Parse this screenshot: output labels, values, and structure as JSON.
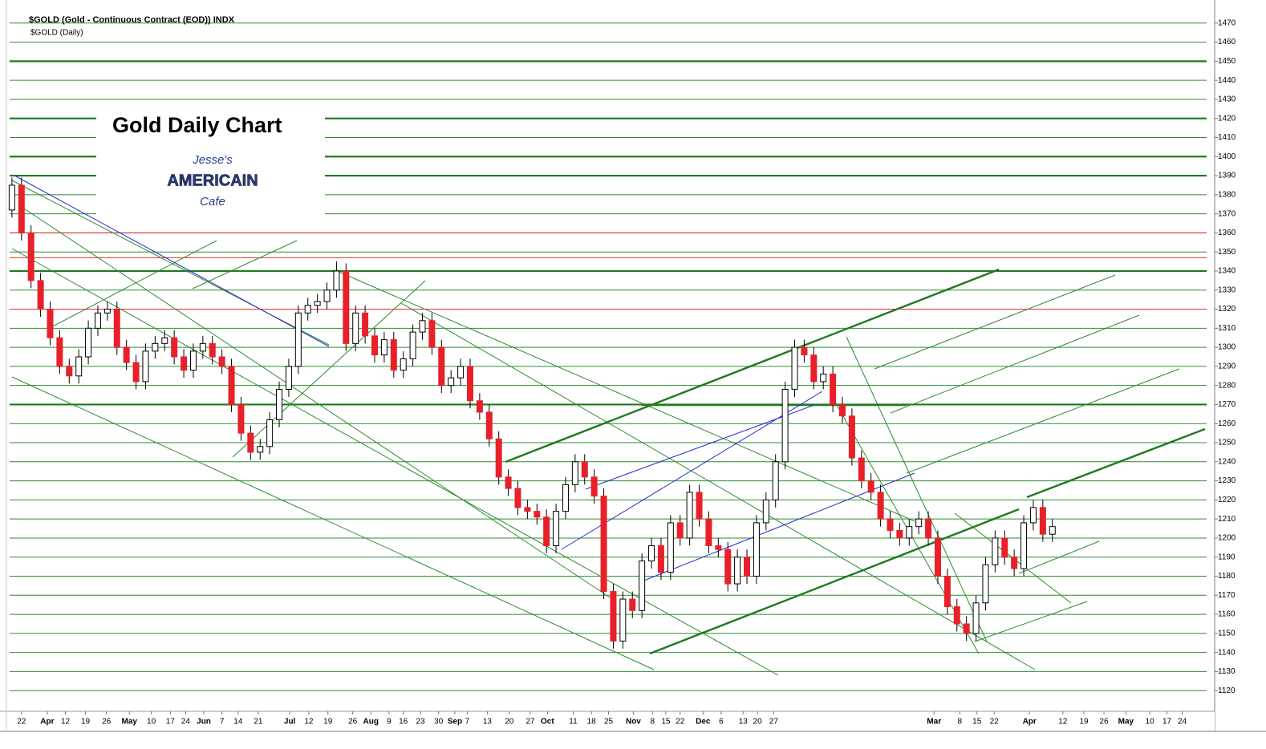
{
  "chart_data": {
    "type": "candlestick",
    "header": "$GOLD (Gold - Continuous Contract (EOD)) INDX",
    "subheader": "$GOLD (Daily)",
    "title": "Gold Daily Chart",
    "logo": [
      "Jesse's",
      "AMERICAIN",
      "Cafe"
    ],
    "up_color": "#ffffff",
    "down_color": "#e8202a",
    "grid": true,
    "grid_color": "#2e8b2e",
    "open": [
      1372,
      1385,
      1360,
      1335,
      1320,
      1305,
      1290,
      1285,
      1295,
      1310,
      1318,
      1320,
      1300,
      1292,
      1282,
      1298,
      1302,
      1305,
      1295,
      1288,
      1298,
      1302,
      1295,
      1290,
      1270,
      1255,
      1245,
      1248,
      1262,
      1278,
      1290,
      1318,
      1322,
      1324,
      1330,
      1340,
      1302,
      1318,
      1306,
      1296,
      1304,
      1288,
      1294,
      1308,
      1314,
      1300,
      1280,
      1284,
      1290,
      1272,
      1266,
      1252,
      1232,
      1226,
      1216,
      1214,
      1211,
      1196,
      1214,
      1228,
      1240,
      1232,
      1222,
      1172,
      1146,
      1168,
      1162,
      1188,
      1196,
      1182,
      1208,
      1200,
      1224,
      1210,
      1196,
      1194,
      1176,
      1190,
      1180,
      1208,
      1220,
      1240,
      1278,
      1300,
      1296,
      1282,
      1286,
      1270,
      1264,
      1242,
      1230,
      1224,
      1210,
      1204,
      1200,
      1206,
      1210,
      1200,
      1180,
      1164,
      1155,
      1150,
      1166,
      1186,
      1200,
      1190,
      1184,
      1208,
      1216,
      1202
    ],
    "high": [
      1389,
      1389,
      1364,
      1339,
      1324,
      1309,
      1294,
      1299,
      1314,
      1322,
      1324,
      1324,
      1304,
      1296,
      1302,
      1306,
      1309,
      1309,
      1299,
      1302,
      1306,
      1306,
      1299,
      1294,
      1274,
      1259,
      1252,
      1266,
      1282,
      1294,
      1322,
      1326,
      1328,
      1334,
      1345,
      1344,
      1322,
      1322,
      1310,
      1308,
      1308,
      1298,
      1312,
      1318,
      1318,
      1304,
      1288,
      1294,
      1294,
      1276,
      1270,
      1256,
      1236,
      1230,
      1220,
      1218,
      1215,
      1218,
      1232,
      1244,
      1244,
      1236,
      1226,
      1176,
      1172,
      1172,
      1192,
      1200,
      1200,
      1212,
      1212,
      1228,
      1228,
      1214,
      1200,
      1198,
      1194,
      1194,
      1212,
      1224,
      1244,
      1282,
      1304,
      1304,
      1300,
      1290,
      1290,
      1274,
      1268,
      1246,
      1234,
      1228,
      1214,
      1208,
      1210,
      1214,
      1214,
      1204,
      1184,
      1168,
      1159,
      1170,
      1190,
      1204,
      1204,
      1194,
      1212,
      1220,
      1220,
      1210
    ],
    "low": [
      1368,
      1356,
      1331,
      1316,
      1301,
      1286,
      1281,
      1281,
      1291,
      1306,
      1314,
      1296,
      1288,
      1278,
      1278,
      1294,
      1298,
      1291,
      1284,
      1284,
      1294,
      1291,
      1286,
      1266,
      1251,
      1241,
      1241,
      1244,
      1258,
      1274,
      1286,
      1314,
      1318,
      1320,
      1326,
      1298,
      1298,
      1302,
      1292,
      1292,
      1284,
      1284,
      1290,
      1304,
      1296,
      1276,
      1276,
      1280,
      1268,
      1262,
      1248,
      1228,
      1222,
      1212,
      1210,
      1207,
      1192,
      1192,
      1210,
      1224,
      1228,
      1218,
      1168,
      1142,
      1142,
      1158,
      1158,
      1184,
      1178,
      1178,
      1196,
      1196,
      1206,
      1192,
      1190,
      1172,
      1172,
      1176,
      1176,
      1204,
      1216,
      1236,
      1274,
      1292,
      1278,
      1278,
      1266,
      1260,
      1238,
      1226,
      1220,
      1206,
      1200,
      1196,
      1196,
      1202,
      1196,
      1176,
      1160,
      1151,
      1146,
      1146,
      1162,
      1182,
      1186,
      1180,
      1180,
      1204,
      1198,
      1198
    ],
    "close": [
      1385,
      1360,
      1335,
      1320,
      1305,
      1290,
      1285,
      1295,
      1310,
      1318,
      1320,
      1300,
      1292,
      1282,
      1298,
      1302,
      1305,
      1295,
      1288,
      1298,
      1302,
      1295,
      1290,
      1270,
      1255,
      1245,
      1248,
      1262,
      1278,
      1290,
      1318,
      1322,
      1324,
      1330,
      1340,
      1302,
      1318,
      1306,
      1296,
      1304,
      1288,
      1294,
      1308,
      1314,
      1300,
      1280,
      1284,
      1290,
      1272,
      1266,
      1252,
      1232,
      1226,
      1216,
      1214,
      1211,
      1196,
      1214,
      1228,
      1240,
      1232,
      1222,
      1172,
      1146,
      1168,
      1162,
      1188,
      1196,
      1182,
      1208,
      1200,
      1224,
      1210,
      1196,
      1194,
      1176,
      1190,
      1180,
      1208,
      1220,
      1240,
      1278,
      1300,
      1296,
      1282,
      1286,
      1270,
      1264,
      1242,
      1230,
      1224,
      1210,
      1204,
      1200,
      1206,
      1210,
      1200,
      1180,
      1164,
      1155,
      1150,
      1166,
      1186,
      1200,
      1190,
      1184,
      1208,
      1216,
      1202,
      1206
    ],
    "xlim": [
      -1,
      126
    ],
    "xticks": [
      {
        "value": 1.0,
        "label": "22"
      },
      {
        "value": 3.7,
        "label": "Apr"
      },
      {
        "value": 5.6,
        "label": "12"
      },
      {
        "value": 7.7,
        "label": "19"
      },
      {
        "value": 9.9,
        "label": "26"
      },
      {
        "value": 12.3,
        "label": "May"
      },
      {
        "value": 14.6,
        "label": "10"
      },
      {
        "value": 16.6,
        "label": "17"
      },
      {
        "value": 18.2,
        "label": "24"
      },
      {
        "value": 20.1,
        "label": "Jun"
      },
      {
        "value": 22.0,
        "label": "7"
      },
      {
        "value": 23.7,
        "label": "14"
      },
      {
        "value": 25.8,
        "label": "21"
      },
      {
        "value": 29.1,
        "label": "Jul"
      },
      {
        "value": 31.1,
        "label": "12"
      },
      {
        "value": 33.1,
        "label": "19"
      },
      {
        "value": 35.7,
        "label": "26"
      },
      {
        "value": 37.6,
        "label": "Aug"
      },
      {
        "value": 39.5,
        "label": "9"
      },
      {
        "value": 41.0,
        "label": "16"
      },
      {
        "value": 42.8,
        "label": "23"
      },
      {
        "value": 44.7,
        "label": "30"
      },
      {
        "value": 46.4,
        "label": "Sep"
      },
      {
        "value": 47.7,
        "label": "7"
      },
      {
        "value": 49.8,
        "label": "13"
      },
      {
        "value": 52.1,
        "label": "20"
      },
      {
        "value": 54.3,
        "label": "27"
      },
      {
        "value": 56.1,
        "label": "Oct"
      },
      {
        "value": 58.8,
        "label": "11"
      },
      {
        "value": 60.7,
        "label": "18"
      },
      {
        "value": 62.5,
        "label": "25"
      },
      {
        "value": 65.1,
        "label": "Nov"
      },
      {
        "value": 67.1,
        "label": "8"
      },
      {
        "value": 68.5,
        "label": "15"
      },
      {
        "value": 70.0,
        "label": "22"
      },
      {
        "value": 72.4,
        "label": "Dec"
      },
      {
        "value": 74.3,
        "label": "6"
      },
      {
        "value": 76.6,
        "label": "13"
      },
      {
        "value": 78.1,
        "label": "20"
      },
      {
        "value": 79.8,
        "label": "27"
      },
      {
        "value": 96.6,
        "label": "Mar"
      },
      {
        "value": 99.3,
        "label": "8"
      },
      {
        "value": 101.1,
        "label": "15"
      },
      {
        "value": 102.9,
        "label": "22"
      },
      {
        "value": 106.6,
        "label": "Apr"
      },
      {
        "value": 110.1,
        "label": "12"
      },
      {
        "value": 112.3,
        "label": "19"
      },
      {
        "value": 114.4,
        "label": "26"
      },
      {
        "value": 116.7,
        "label": "May"
      },
      {
        "value": 119.2,
        "label": "10"
      },
      {
        "value": 121.0,
        "label": "17"
      },
      {
        "value": 122.6,
        "label": "24"
      }
    ],
    "ylim": [
      1110,
      1480
    ],
    "yticks": [
      1120,
      1130,
      1140,
      1150,
      1160,
      1170,
      1180,
      1190,
      1200,
      1210,
      1220,
      1230,
      1240,
      1250,
      1260,
      1270,
      1280,
      1290,
      1300,
      1310,
      1320,
      1330,
      1340,
      1350,
      1360,
      1370,
      1380,
      1390,
      1400,
      1410,
      1420,
      1430,
      1440,
      1450,
      1460,
      1470
    ],
    "levels": [
      {
        "value": 1360,
        "color": "#e03030"
      },
      {
        "value": 1347,
        "color": "#e03030"
      },
      {
        "value": 1320,
        "color": "#e03030"
      },
      {
        "value": 1450,
        "color": "#1f7a1f"
      },
      {
        "value": 1420,
        "color": "#1f7a1f"
      },
      {
        "value": 1400,
        "color": "#1f7a1f"
      },
      {
        "value": 1390,
        "color": "#1f7a1f"
      },
      {
        "value": 1340,
        "color": "#1f7a1f"
      },
      {
        "value": 1270,
        "color": "#1f7a1f"
      }
    ]
  }
}
